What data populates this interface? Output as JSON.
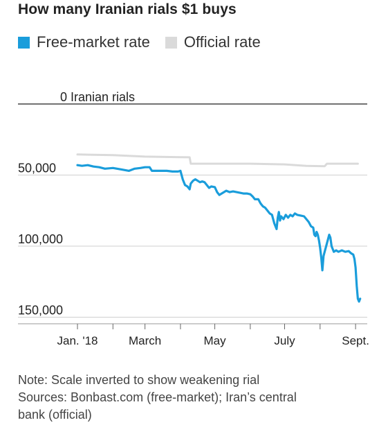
{
  "header": {
    "title": "How many Iranian rials $1 buys"
  },
  "legend": [
    {
      "name": "Free-market rate",
      "color": "#1a9ddb"
    },
    {
      "name": "Official rate",
      "color": "#dadada"
    }
  ],
  "chart_data": {
    "type": "line",
    "title": "How many Iranian rials $1 buys",
    "inverted_y": true,
    "ylim": [
      0,
      150000
    ],
    "xlim": [
      "2018-01-01",
      "2018-09-10"
    ],
    "y_ticks": [
      {
        "value": 0,
        "label": "0 Iranian rials"
      },
      {
        "value": 50000,
        "label": "50,000"
      },
      {
        "value": 100000,
        "label": "100,000"
      },
      {
        "value": 150000,
        "label": "150,000"
      }
    ],
    "x_ticks": [
      {
        "date": "2018-01-01",
        "label": "Jan. '18"
      },
      {
        "date": "2018-02-01",
        "label": ""
      },
      {
        "date": "2018-03-01",
        "label": "March"
      },
      {
        "date": "2018-04-01",
        "label": ""
      },
      {
        "date": "2018-05-01",
        "label": "May"
      },
      {
        "date": "2018-06-01",
        "label": ""
      },
      {
        "date": "2018-07-01",
        "label": "July"
      },
      {
        "date": "2018-08-01",
        "label": ""
      },
      {
        "date": "2018-09-01",
        "label": "Sept."
      }
    ],
    "series": [
      {
        "name": "Official rate",
        "color": "#dadada",
        "points": [
          [
            "2018-01-01",
            35500
          ],
          [
            "2018-02-01",
            36000
          ],
          [
            "2018-03-01",
            37000
          ],
          [
            "2018-04-09",
            37500
          ],
          [
            "2018-04-10",
            42000
          ],
          [
            "2018-06-01",
            42000
          ],
          [
            "2018-07-01",
            42500
          ],
          [
            "2018-07-20",
            43500
          ],
          [
            "2018-08-05",
            43800
          ],
          [
            "2018-08-07",
            42000
          ],
          [
            "2018-09-03",
            42000
          ]
        ]
      },
      {
        "name": "Free-market rate",
        "color": "#1a9ddb",
        "points": [
          [
            "2018-01-01",
            43000
          ],
          [
            "2018-01-05",
            43500
          ],
          [
            "2018-01-10",
            43000
          ],
          [
            "2018-01-15",
            44000
          ],
          [
            "2018-01-20",
            44500
          ],
          [
            "2018-01-25",
            45500
          ],
          [
            "2018-02-01",
            45000
          ],
          [
            "2018-02-08",
            46000
          ],
          [
            "2018-02-15",
            47000
          ],
          [
            "2018-02-20",
            45500
          ],
          [
            "2018-02-25",
            45000
          ],
          [
            "2018-03-01",
            44500
          ],
          [
            "2018-03-05",
            44500
          ],
          [
            "2018-03-07",
            47000
          ],
          [
            "2018-03-15",
            47000
          ],
          [
            "2018-03-20",
            47000
          ],
          [
            "2018-03-25",
            47500
          ],
          [
            "2018-03-30",
            47500
          ],
          [
            "2018-04-01",
            47000
          ],
          [
            "2018-04-03",
            53000
          ],
          [
            "2018-04-05",
            57000
          ],
          [
            "2018-04-07",
            58000
          ],
          [
            "2018-04-09",
            60000
          ],
          [
            "2018-04-10",
            56000
          ],
          [
            "2018-04-12",
            54000
          ],
          [
            "2018-04-14",
            53000
          ],
          [
            "2018-04-16",
            54000
          ],
          [
            "2018-04-18",
            55000
          ],
          [
            "2018-04-20",
            54500
          ],
          [
            "2018-04-22",
            55000
          ],
          [
            "2018-04-24",
            57000
          ],
          [
            "2018-04-26",
            59000
          ],
          [
            "2018-04-28",
            58000
          ],
          [
            "2018-05-01",
            58500
          ],
          [
            "2018-05-03",
            62000
          ],
          [
            "2018-05-05",
            64000
          ],
          [
            "2018-05-07",
            63000
          ],
          [
            "2018-05-09",
            62000
          ],
          [
            "2018-05-11",
            61000
          ],
          [
            "2018-05-14",
            62000
          ],
          [
            "2018-05-17",
            61500
          ],
          [
            "2018-05-20",
            62000
          ],
          [
            "2018-05-23",
            62500
          ],
          [
            "2018-05-26",
            63000
          ],
          [
            "2018-05-29",
            63000
          ],
          [
            "2018-06-01",
            63500
          ],
          [
            "2018-06-03",
            65000
          ],
          [
            "2018-06-05",
            67000
          ],
          [
            "2018-06-08",
            67000
          ],
          [
            "2018-06-10",
            70000
          ],
          [
            "2018-06-12",
            72000
          ],
          [
            "2018-06-14",
            73000
          ],
          [
            "2018-06-16",
            75000
          ],
          [
            "2018-06-18",
            77000
          ],
          [
            "2018-06-20",
            78000
          ],
          [
            "2018-06-22",
            84000
          ],
          [
            "2018-06-24",
            88000
          ],
          [
            "2018-06-25",
            80000
          ],
          [
            "2018-06-26",
            76000
          ],
          [
            "2018-06-27",
            82000
          ],
          [
            "2018-06-28",
            79000
          ],
          [
            "2018-06-30",
            81000
          ],
          [
            "2018-07-02",
            78000
          ],
          [
            "2018-07-04",
            80000
          ],
          [
            "2018-07-06",
            78000
          ],
          [
            "2018-07-08",
            79000
          ],
          [
            "2018-07-10",
            77000
          ],
          [
            "2018-07-12",
            78000
          ],
          [
            "2018-07-15",
            78500
          ],
          [
            "2018-07-18",
            79000
          ],
          [
            "2018-07-20",
            81000
          ],
          [
            "2018-07-22",
            83000
          ],
          [
            "2018-07-24",
            86000
          ],
          [
            "2018-07-26",
            87000
          ],
          [
            "2018-07-27",
            92000
          ],
          [
            "2018-07-28",
            93000
          ],
          [
            "2018-07-29",
            90000
          ],
          [
            "2018-07-30",
            92000
          ],
          [
            "2018-07-31",
            96000
          ],
          [
            "2018-08-01",
            101000
          ],
          [
            "2018-08-02",
            108000
          ],
          [
            "2018-08-03",
            117000
          ],
          [
            "2018-08-04",
            107000
          ],
          [
            "2018-08-05",
            104000
          ],
          [
            "2018-08-07",
            98000
          ],
          [
            "2018-08-09",
            92000
          ],
          [
            "2018-08-10",
            94000
          ],
          [
            "2018-08-11",
            100000
          ],
          [
            "2018-08-12",
            102000
          ],
          [
            "2018-08-13",
            104000
          ],
          [
            "2018-08-15",
            103000
          ],
          [
            "2018-08-17",
            104000
          ],
          [
            "2018-08-20",
            103000
          ],
          [
            "2018-08-23",
            104000
          ],
          [
            "2018-08-26",
            103500
          ],
          [
            "2018-08-28",
            105000
          ],
          [
            "2018-08-30",
            106000
          ],
          [
            "2018-08-31",
            109000
          ],
          [
            "2018-09-01",
            115000
          ],
          [
            "2018-09-02",
            128000
          ],
          [
            "2018-09-03",
            137000
          ],
          [
            "2018-09-04",
            139000
          ],
          [
            "2018-09-05",
            137000
          ]
        ]
      }
    ]
  },
  "footnotes": {
    "note": "Note: Scale inverted to show weakening rial",
    "sources_line1": "Sources: Bonbast.com (free-market); Iran’s central",
    "sources_line2": "bank (official)"
  }
}
